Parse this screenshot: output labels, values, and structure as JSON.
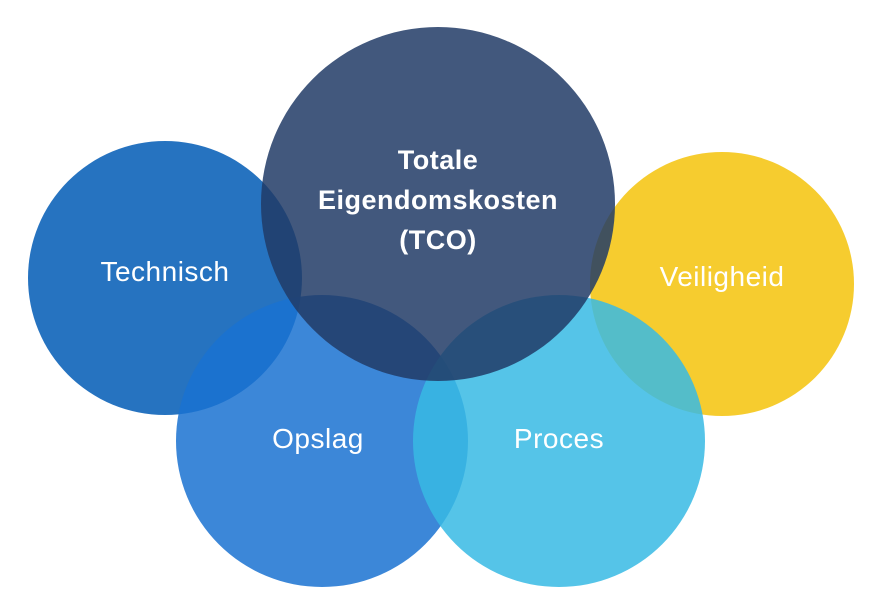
{
  "diagram": {
    "description": "Venn-style diagram of five overlapping translucent circles on a white background showing factors of Total Cost of Ownership",
    "background_color": "#ffffff",
    "text_color": "#ffffff",
    "circles": {
      "tco": {
        "label": "Totale\nEigendomskosten\n(TCO)",
        "fill": "rgba(33,59,102,0.85)",
        "solid_hex_on_white": "#42587d",
        "position": "top center, largest"
      },
      "technisch": {
        "label": "Technisch",
        "fill": "rgba(0,90,181,0.85)",
        "solid_hex_on_white": "#2673c0",
        "position": "middle left"
      },
      "veiligheid": {
        "label": "Veiligheid",
        "fill": "rgba(244,195,10,0.85)",
        "solid_hex_on_white": "#f6cc2f",
        "position": "middle right"
      },
      "opslag": {
        "label": "Opslag",
        "fill": "rgba(26,114,209,0.85)",
        "solid_hex_on_white": "#3c88d8",
        "position": "bottom left-center"
      },
      "proces": {
        "label": "Proces",
        "fill": "rgba(55,186,228,0.85)",
        "solid_hex_on_white": "#55c4e8",
        "position": "bottom right-center"
      }
    }
  }
}
